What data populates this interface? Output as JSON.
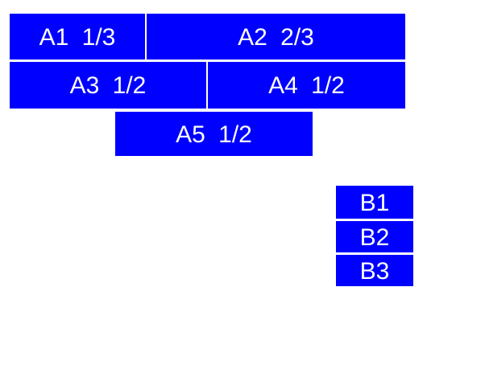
{
  "colors": {
    "background": "#ffffff",
    "box_fill": "#0000ff",
    "box_text": "#ffffff"
  },
  "group_a": {
    "boxes": [
      {
        "id": "A1",
        "label": "A1 1/3"
      },
      {
        "id": "A2",
        "label": "A2 2/3"
      },
      {
        "id": "A3",
        "label": "A3 1/2"
      },
      {
        "id": "A4",
        "label": "A4 1/2"
      },
      {
        "id": "A5",
        "label": "A5 1/2"
      }
    ]
  },
  "group_b": {
    "boxes": [
      {
        "id": "B1",
        "label": "B1"
      },
      {
        "id": "B2",
        "label": "B2"
      },
      {
        "id": "B3",
        "label": "B3"
      }
    ]
  }
}
